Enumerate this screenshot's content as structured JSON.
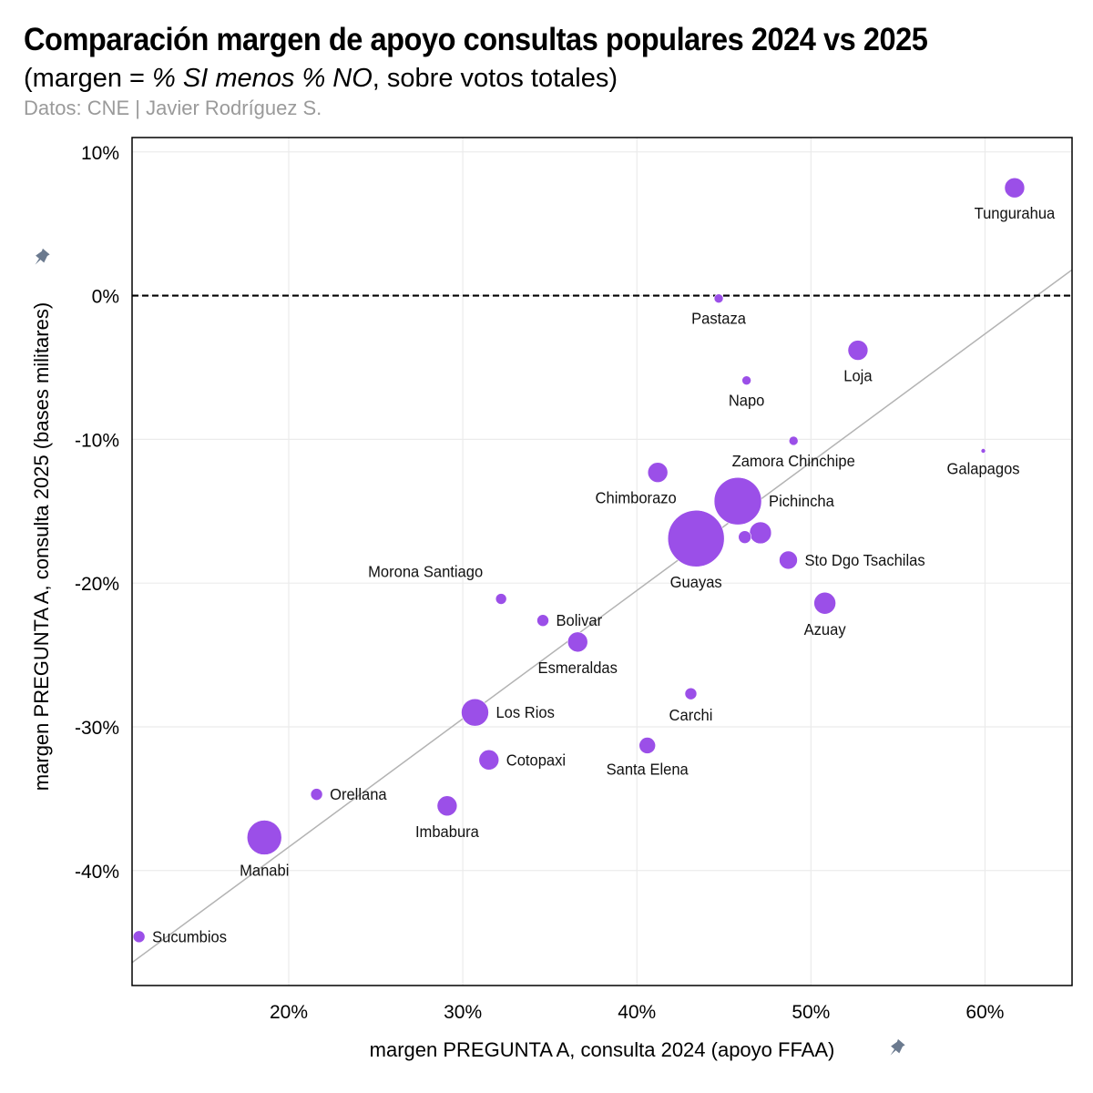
{
  "header": {
    "title": "Comparación margen de apoyo consultas populares 2024 vs 2025",
    "subtitle_prefix": "(margen = ",
    "subtitle_em": "% SI menos % NO",
    "subtitle_suffix": ", sobre votos totales)",
    "caption": "Datos: CNE | Javier Rodríguez S."
  },
  "colors": {
    "point": "#9b4fe8",
    "grid": "#ebebeb",
    "frame": "#000000",
    "trend": "#b3b3b3",
    "zero_line": "#000000",
    "pin": "#6b7a8f"
  },
  "chart_data": {
    "type": "scatter",
    "xlabel": "margen PREGUNTA A, consulta 2024 (apoyo FFAA)",
    "ylabel": "margen PREGUNTA A, consulta 2025 (bases militares)",
    "xlim": [
      11,
      65
    ],
    "ylim": [
      -48,
      11
    ],
    "x_ticks": [
      20,
      30,
      40,
      50,
      60
    ],
    "x_tick_labels": [
      "20%",
      "30%",
      "40%",
      "50%",
      "60%"
    ],
    "y_ticks": [
      10,
      0,
      -10,
      -20,
      -30,
      -40
    ],
    "y_tick_labels": [
      "10%",
      "0%",
      "-10%",
      "-20%",
      "-30%",
      "-40%"
    ],
    "reference_line_y": 0,
    "trend_line": {
      "x1": 11,
      "y1": -46.4,
      "x2": 65,
      "y2": 1.8
    },
    "points": [
      {
        "name": "Tungurahua",
        "x": 61.7,
        "y": 7.5,
        "size": 11,
        "label_pos": "below"
      },
      {
        "name": "Pastaza",
        "x": 44.7,
        "y": -0.2,
        "size": 5,
        "label_pos": "below"
      },
      {
        "name": "Loja",
        "x": 52.7,
        "y": -3.8,
        "size": 11,
        "label_pos": "below"
      },
      {
        "name": "Napo",
        "x": 46.3,
        "y": -5.9,
        "size": 5,
        "label_pos": "below"
      },
      {
        "name": "Zamora Chinchipe",
        "x": 49.0,
        "y": -10.1,
        "size": 5,
        "label_pos": "below"
      },
      {
        "name": "Galapagos",
        "x": 59.9,
        "y": -10.8,
        "size": 2.5,
        "label_pos": "below"
      },
      {
        "name": "Chimborazo",
        "x": 41.2,
        "y": -12.3,
        "size": 11,
        "label_pos": "below-left"
      },
      {
        "name": "Pichincha",
        "x": 45.8,
        "y": -14.3,
        "size": 26,
        "label_pos": "right"
      },
      {
        "name": "",
        "x": 46.2,
        "y": -16.8,
        "size": 7,
        "label_pos": "none"
      },
      {
        "name": "",
        "x": 47.1,
        "y": -16.5,
        "size": 12,
        "label_pos": "none"
      },
      {
        "name": "Guayas",
        "x": 43.4,
        "y": -16.9,
        "size": 31,
        "label_pos": "below"
      },
      {
        "name": "Sto Dgo Tsachilas",
        "x": 48.7,
        "y": -18.4,
        "size": 10,
        "label_pos": "right"
      },
      {
        "name": "Morona Santiago",
        "x": 32.2,
        "y": -21.1,
        "size": 6,
        "label_pos": "above-left"
      },
      {
        "name": "Azuay",
        "x": 50.8,
        "y": -21.4,
        "size": 12,
        "label_pos": "below"
      },
      {
        "name": "Bolivar",
        "x": 34.6,
        "y": -22.6,
        "size": 6.5,
        "label_pos": "right"
      },
      {
        "name": "Esmeraldas",
        "x": 36.6,
        "y": -24.1,
        "size": 11,
        "label_pos": "below"
      },
      {
        "name": "Carchi",
        "x": 43.1,
        "y": -27.7,
        "size": 6.5,
        "label_pos": "below"
      },
      {
        "name": "Los Rios",
        "x": 30.7,
        "y": -29.0,
        "size": 15,
        "label_pos": "right"
      },
      {
        "name": "Santa Elena",
        "x": 40.6,
        "y": -31.3,
        "size": 9,
        "label_pos": "below"
      },
      {
        "name": "Cotopaxi",
        "x": 31.5,
        "y": -32.3,
        "size": 11,
        "label_pos": "right"
      },
      {
        "name": "Orellana",
        "x": 21.6,
        "y": -34.7,
        "size": 6.5,
        "label_pos": "right"
      },
      {
        "name": "Imbabura",
        "x": 29.1,
        "y": -35.5,
        "size": 11,
        "label_pos": "below"
      },
      {
        "name": "Manabi",
        "x": 18.6,
        "y": -37.7,
        "size": 19,
        "label_pos": "below"
      },
      {
        "name": "Sucumbios",
        "x": 11.4,
        "y": -44.6,
        "size": 6.5,
        "label_pos": "right"
      }
    ]
  }
}
